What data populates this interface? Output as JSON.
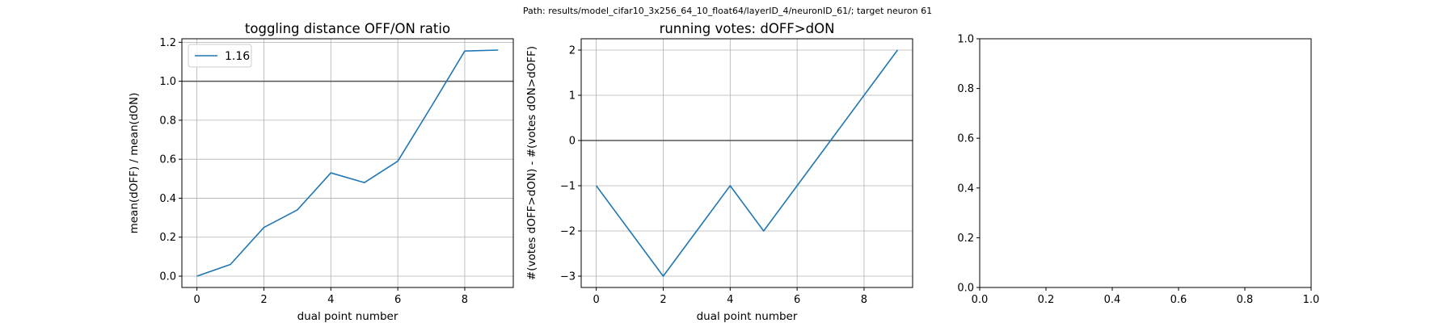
{
  "suptitle": "Path: results/model_cifar10_3x256_64_10_float64/layerID_4/neuronID_61/; target neuron 61",
  "colors": {
    "series": "#1f77b4",
    "grid": "#b0b0b0",
    "hline": "#555555",
    "axes": "#000000"
  },
  "chart_data": [
    {
      "type": "line",
      "title": "toggling distance OFF/ON ratio",
      "xlabel": "dual point number",
      "ylabel": "mean(dOFF) / mean(dON)",
      "xlim": [
        -0.45,
        9.45
      ],
      "ylim": [
        -0.058,
        1.218
      ],
      "xticks": [
        0,
        2,
        4,
        6,
        8
      ],
      "xticklabels": [
        "0",
        "2",
        "4",
        "6",
        "8"
      ],
      "yticks": [
        0.0,
        0.2,
        0.4,
        0.6,
        0.8,
        1.0,
        1.2
      ],
      "yticklabels": [
        "0.0",
        "0.2",
        "0.4",
        "0.6",
        "0.8",
        "1.0",
        "1.2"
      ],
      "grid": true,
      "hline": 1.0,
      "legend": {
        "location": "upper left",
        "entries": [
          "1.16"
        ]
      },
      "series": [
        {
          "name": "1.16",
          "x": [
            0,
            1,
            2,
            3,
            4,
            5,
            6,
            7,
            8,
            9
          ],
          "y": [
            0.0,
            0.06,
            0.25,
            0.34,
            0.53,
            0.48,
            0.59,
            0.87,
            1.155,
            1.16
          ]
        }
      ]
    },
    {
      "type": "line",
      "title": "running votes: dOFF>dON",
      "xlabel": "dual point number",
      "ylabel": "#(votes dOFF>dON) - #(votes dON>dOFF)",
      "xlim": [
        -0.45,
        9.45
      ],
      "ylim": [
        -3.25,
        2.25
      ],
      "xticks": [
        0,
        2,
        4,
        6,
        8
      ],
      "xticklabels": [
        "0",
        "2",
        "4",
        "6",
        "8"
      ],
      "yticks": [
        -3,
        -2,
        -1,
        0,
        1,
        2
      ],
      "yticklabels": [
        "−3",
        "−2",
        "−1",
        "0",
        "1",
        "2"
      ],
      "grid": true,
      "hline": 0,
      "series": [
        {
          "x": [
            0,
            1,
            2,
            3,
            4,
            5,
            6,
            7,
            8,
            9
          ],
          "y": [
            -1,
            -2,
            -3,
            -2,
            -1,
            -2,
            -1,
            0,
            1,
            2
          ]
        }
      ]
    },
    {
      "type": "line",
      "title": "",
      "xlabel": "",
      "ylabel": "",
      "xlim": [
        0.0,
        1.0
      ],
      "ylim": [
        0.0,
        1.0
      ],
      "xticks": [
        0.0,
        0.2,
        0.4,
        0.6,
        0.8,
        1.0
      ],
      "xticklabels": [
        "0.0",
        "0.2",
        "0.4",
        "0.6",
        "0.8",
        "1.0"
      ],
      "yticks": [
        0.0,
        0.2,
        0.4,
        0.6,
        0.8,
        1.0
      ],
      "yticklabels": [
        "0.0",
        "0.2",
        "0.4",
        "0.6",
        "0.8",
        "1.0"
      ],
      "grid": false,
      "series": []
    }
  ]
}
